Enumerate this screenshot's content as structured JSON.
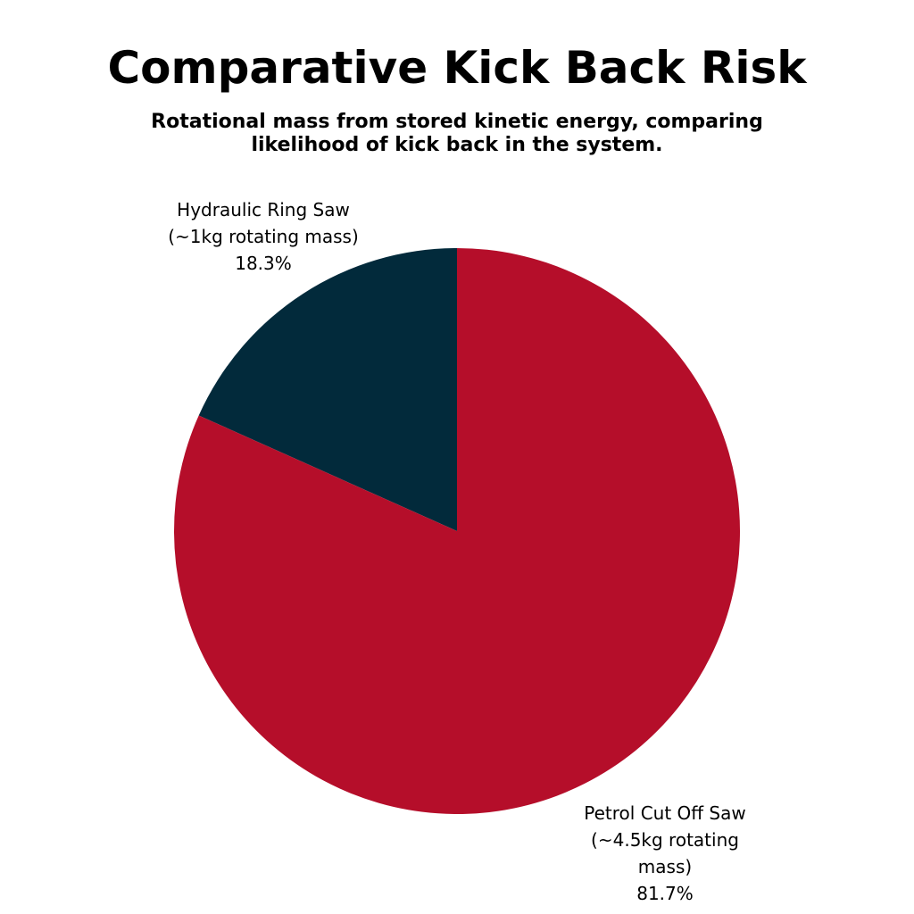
{
  "chart_data": {
    "type": "pie",
    "title": "Comparative Kick Back Risk",
    "subtitle": "Rotational mass from stored kinetic energy, comparing likelihood of kick back in the system.",
    "slices": [
      {
        "name": "Hydraulic Ring Saw",
        "detail": "(~1kg rotating mass)",
        "value": 18.3,
        "value_label": "18.3%",
        "color": "#022a3b"
      },
      {
        "name": "Petrol Cut Off Saw",
        "detail_lines": [
          "(~4.5kg rotating",
          "mass)"
        ],
        "value": 81.7,
        "value_label": "81.7%",
        "color": "#b50e2a"
      }
    ],
    "legend": "none",
    "labels_outside": true
  }
}
